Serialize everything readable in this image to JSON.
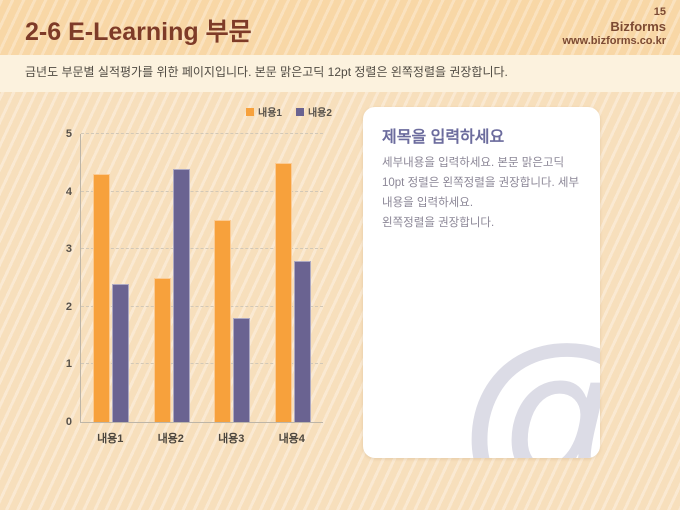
{
  "slide": {
    "page_number": "15",
    "brand": "Bizforms",
    "brand_url": "www.bizforms.co.kr",
    "title": "2-6 E-Learning 부문",
    "subtitle": "금년도 부문별 실적평가를 위한 페이지입니다. 본문 맑은고딕 12pt 정렬은 왼쪽정렬을 권장합니다."
  },
  "chart_data": {
    "type": "bar",
    "title": "",
    "categories": [
      "내용1",
      "내용2",
      "내용3",
      "내용4"
    ],
    "series": [
      {
        "name": "내용1",
        "color": "#F7A13C",
        "values": [
          4.3,
          2.5,
          3.5,
          4.5
        ]
      },
      {
        "name": "내용2",
        "color": "#6A6391",
        "values": [
          2.4,
          4.4,
          1.8,
          2.8
        ]
      }
    ],
    "ylim": [
      0,
      5
    ],
    "yticks": [
      0,
      1,
      2,
      3,
      4,
      5
    ],
    "grid": true,
    "legend_position": "top"
  },
  "card": {
    "title": "제목을 입력하세요",
    "paragraphs": [
      "세부내용을 입력하세요. 본문 맑은고딕 10pt 정렬은 왼쪽정렬을 권장합니다. 세부내용을 입력하세요.",
      "왼쪽정렬을 권장합니다."
    ],
    "watermark_glyph": "@"
  },
  "colors": {
    "title_text": "#7E3B28",
    "brand_text": "#7C4A33",
    "subtitle_text": "#4F4A42",
    "bg_header": "#F8D7A6",
    "bg_body": "#F7DFBC",
    "bg_subtitle_strip": "#FCF2DE",
    "series1": "#F7A13C",
    "series2": "#6A6391",
    "axis_text": "#57514A",
    "card_title_text": "#6B6B9D",
    "card_body_text": "#8C8797",
    "watermark": "#DCDCE6"
  }
}
